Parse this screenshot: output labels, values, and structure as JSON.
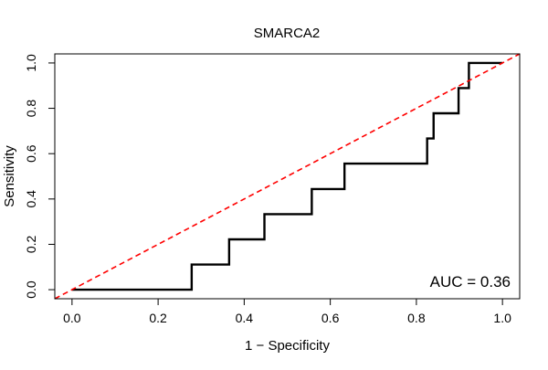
{
  "chart_data": {
    "type": "line",
    "title": "SMARCA2",
    "xlabel": "1 − Specificity",
    "ylabel": "Sensitivity",
    "xlim": [
      -0.04,
      1.04
    ],
    "ylim": [
      -0.04,
      1.04
    ],
    "xticks": [
      0.0,
      0.2,
      0.4,
      0.6,
      0.8,
      1.0
    ],
    "yticks": [
      0.0,
      0.2,
      0.4,
      0.6,
      0.8,
      1.0
    ],
    "xtick_labels": [
      "0.0",
      "0.2",
      "0.4",
      "0.6",
      "0.8",
      "1.0"
    ],
    "ytick_labels": [
      "0.0",
      "0.2",
      "0.4",
      "0.6",
      "0.8",
      "1.0"
    ],
    "grid": false,
    "series": [
      {
        "name": "ROC",
        "color": "#000000",
        "style": "solid-step",
        "x": [
          0.0,
          0.278,
          0.278,
          0.365,
          0.365,
          0.447,
          0.447,
          0.557,
          0.557,
          0.633,
          0.633,
          0.825,
          0.825,
          0.84,
          0.84,
          0.898,
          0.898,
          0.922,
          0.922,
          1.0
        ],
        "y": [
          0.0,
          0.0,
          0.111,
          0.111,
          0.222,
          0.222,
          0.333,
          0.333,
          0.444,
          0.444,
          0.556,
          0.556,
          0.667,
          0.667,
          0.778,
          0.778,
          0.889,
          0.889,
          1.0,
          1.0
        ]
      },
      {
        "name": "Chance",
        "color": "#ff0000",
        "style": "dashed",
        "x": [
          -0.04,
          1.04
        ],
        "y": [
          -0.04,
          1.04
        ]
      }
    ],
    "annotations": [
      {
        "text": "AUC = 0.36",
        "position": "bottom-right"
      }
    ]
  }
}
